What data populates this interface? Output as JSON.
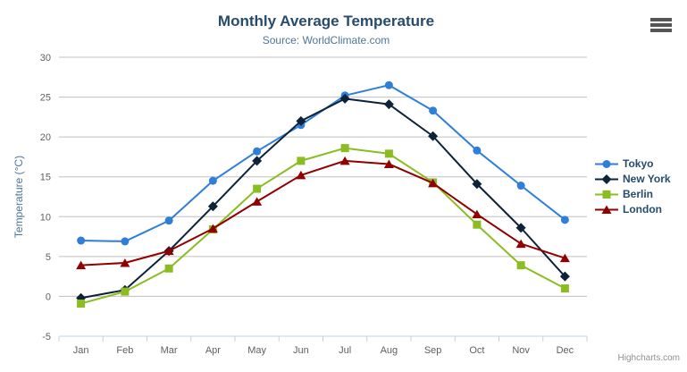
{
  "header": {
    "title": "Monthly Average Temperature",
    "subtitle": "Source: WorldClimate.com"
  },
  "credits": "Highcharts.com",
  "export_menu_icon": "hamburger-icon",
  "colors": {
    "title": "#274b6d",
    "subtitle": "#4d759e",
    "axis_title": "#4d759e",
    "axis_labels": "#606060",
    "gridline": "#C0C0C0",
    "axis_line": "#C0D0E0",
    "legend_text": "#274b6d",
    "credits_text": "#909090"
  },
  "chart_data": {
    "type": "line",
    "title": "Monthly Average Temperature",
    "subtitle": "Source: WorldClimate.com",
    "xlabel": "",
    "ylabel": "Temperature (°C)",
    "ylim": [
      -5,
      30
    ],
    "ytick_interval": 5,
    "grid": true,
    "legend_position": "right",
    "categories": [
      "Jan",
      "Feb",
      "Mar",
      "Apr",
      "May",
      "Jun",
      "Jul",
      "Aug",
      "Sep",
      "Oct",
      "Nov",
      "Dec"
    ],
    "series": [
      {
        "name": "Tokyo",
        "color": "#2f7ed8",
        "marker": "circle",
        "values": [
          7.0,
          6.9,
          9.5,
          14.5,
          18.2,
          21.5,
          25.2,
          26.5,
          23.3,
          18.3,
          13.9,
          9.6
        ]
      },
      {
        "name": "New York",
        "color": "#0d233a",
        "marker": "diamond",
        "values": [
          -0.2,
          0.8,
          5.7,
          11.3,
          17.0,
          22.0,
          24.8,
          24.1,
          20.1,
          14.1,
          8.6,
          2.5
        ]
      },
      {
        "name": "Berlin",
        "color": "#8bbc21",
        "marker": "square",
        "values": [
          -0.9,
          0.6,
          3.5,
          8.4,
          13.5,
          17.0,
          18.6,
          17.9,
          14.3,
          9.0,
          3.9,
          1.0
        ]
      },
      {
        "name": "London",
        "color": "#910000",
        "marker": "triangle",
        "values": [
          3.9,
          4.2,
          5.7,
          8.5,
          11.9,
          15.2,
          17.0,
          16.6,
          14.2,
          10.3,
          6.6,
          4.8
        ]
      }
    ]
  }
}
